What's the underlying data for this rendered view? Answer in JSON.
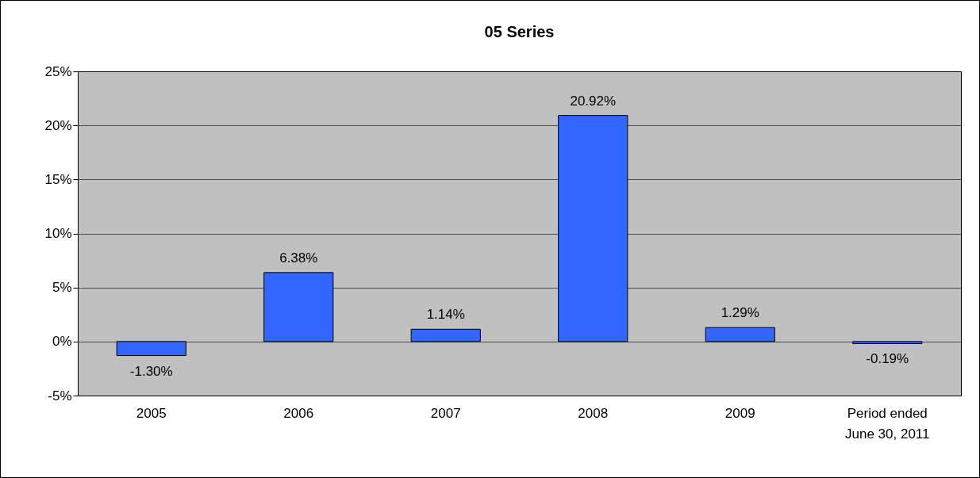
{
  "chart_data": {
    "type": "bar",
    "title": "05 Series",
    "categories": [
      "2005",
      "2006",
      "2007",
      "2008",
      "2009",
      "Period ended June 30, 2011"
    ],
    "values": [
      -1.3,
      6.38,
      1.14,
      20.92,
      1.29,
      -0.19
    ],
    "value_labels": [
      "-1.30%",
      "6.38%",
      "1.14%",
      "20.92%",
      "1.29%",
      "-0.19%"
    ],
    "color": "#3366ff",
    "ylim": [
      -5,
      25
    ],
    "yticks": [
      {
        "value": -5,
        "label": "-5%"
      },
      {
        "value": 0,
        "label": "0%"
      },
      {
        "value": 5,
        "label": "5%"
      },
      {
        "value": 10,
        "label": "10%"
      },
      {
        "value": 15,
        "label": "15%"
      },
      {
        "value": 20,
        "label": "20%"
      },
      {
        "value": 25,
        "label": "25%"
      }
    ],
    "grid": "y"
  }
}
